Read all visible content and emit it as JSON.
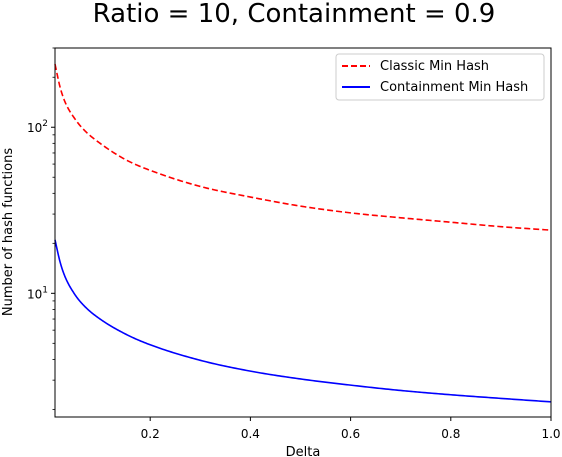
{
  "chart_data": {
    "type": "line",
    "title": "Ratio = 10, Containment = 0.9",
    "xlabel": "Delta",
    "ylabel": "Number of hash functions",
    "x_scale": "linear",
    "y_scale": "log",
    "xlim": [
      0.01,
      1.0
    ],
    "ylim": [
      1.8,
      300
    ],
    "x_ticks": [
      0.2,
      0.4,
      0.6,
      0.8,
      1.0
    ],
    "x_tick_labels": [
      "0.2",
      "0.4",
      "0.6",
      "0.8",
      "1.0"
    ],
    "y_major_ticks": [
      10,
      100
    ],
    "y_major_tick_labels": [
      {
        "base": "10",
        "exp": "1"
      },
      {
        "base": "10",
        "exp": "2"
      }
    ],
    "grid": false,
    "legend_position": "top-right",
    "series": [
      {
        "name": "Classic Min Hash",
        "color": "#ff0000",
        "line_style": "dashed",
        "x": [
          0.01,
          0.02,
          0.03,
          0.05,
          0.07,
          0.1,
          0.15,
          0.2,
          0.3,
          0.4,
          0.5,
          0.6,
          0.7,
          0.8,
          0.9,
          1.0
        ],
        "y": [
          240,
          175,
          142,
          112,
          95,
          80,
          64,
          55,
          44,
          38,
          33.5,
          30.5,
          28.5,
          26.8,
          25.2,
          24
        ]
      },
      {
        "name": "Containment Min Hash",
        "color": "#0000ff",
        "line_style": "solid",
        "x": [
          0.01,
          0.02,
          0.03,
          0.05,
          0.07,
          0.1,
          0.15,
          0.2,
          0.3,
          0.4,
          0.5,
          0.6,
          0.7,
          0.8,
          0.9,
          1.0
        ],
        "y": [
          21,
          15.5,
          12.6,
          9.8,
          8.3,
          7.0,
          5.7,
          4.9,
          3.95,
          3.4,
          3.05,
          2.8,
          2.6,
          2.45,
          2.33,
          2.22
        ]
      }
    ]
  }
}
